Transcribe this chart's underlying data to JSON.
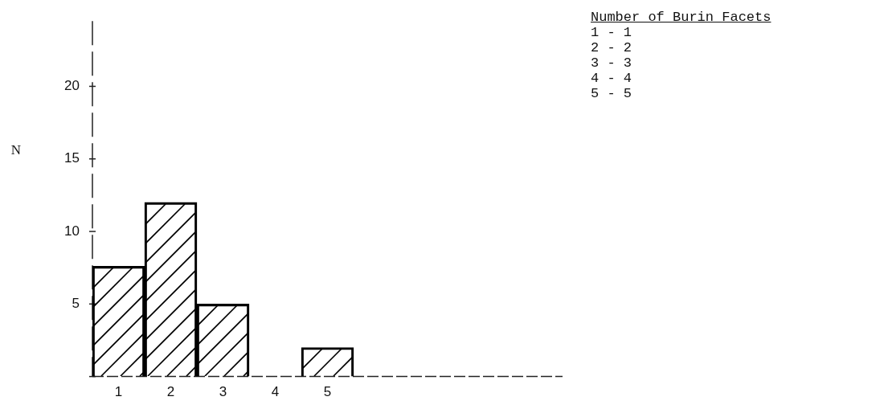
{
  "chart_data": {
    "type": "bar",
    "legend_title": "Number of Burin Facets",
    "annotations": [
      "1 - 1",
      "2 - 2",
      "3 - 3",
      "4 - 4",
      "5 - 5"
    ],
    "ylabel": "N",
    "categories": [
      "1",
      "2",
      "3",
      "4",
      "5",
      null,
      null,
      null,
      null
    ],
    "values": [
      7.6,
      12,
      5,
      0,
      2,
      null,
      null,
      null,
      null
    ],
    "color": "#000000",
    "ylim": [
      0,
      24.5
    ],
    "yticks": [
      {
        "value": 0,
        "label": null
      },
      5,
      10,
      15,
      20
    ],
    "grid": false,
    "legend": false
  }
}
